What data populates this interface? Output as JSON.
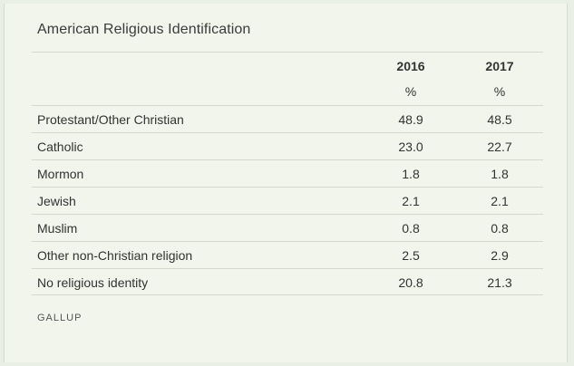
{
  "table": {
    "title": "American Religious Identification",
    "columns": [
      {
        "year": "2016",
        "unit": "%"
      },
      {
        "year": "2017",
        "unit": "%"
      }
    ],
    "rows": [
      {
        "label": "Protestant/Other Christian",
        "v2016": "48.9",
        "v2017": "48.5"
      },
      {
        "label": "Catholic",
        "v2016": "23.0",
        "v2017": "22.7"
      },
      {
        "label": "Mormon",
        "v2016": "1.8",
        "v2017": "1.8"
      },
      {
        "label": "Jewish",
        "v2016": "2.1",
        "v2017": "2.1"
      },
      {
        "label": "Muslim",
        "v2016": "0.8",
        "v2017": "0.8"
      },
      {
        "label": "Other non-Christian religion",
        "v2016": "2.5",
        "v2017": "2.9"
      },
      {
        "label": "No religious identity",
        "v2016": "20.8",
        "v2017": "21.3"
      }
    ],
    "source": "GALLUP"
  }
}
